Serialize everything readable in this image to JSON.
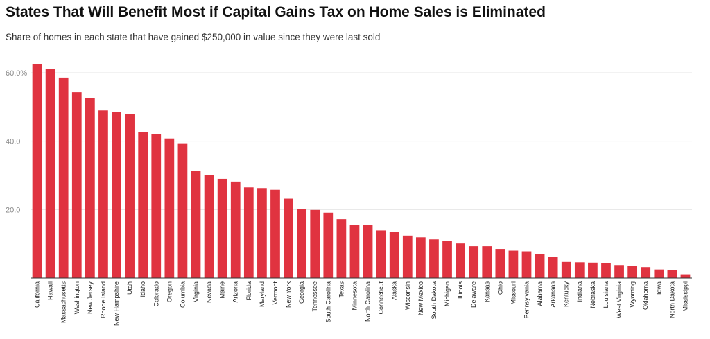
{
  "title": "States That Will Benefit Most if Capital Gains Tax on Home Sales is Eliminated",
  "subtitle": "Share of homes in each state that have gained $250,000 in value since they were last sold",
  "colors": {
    "bar": "#e03340",
    "grid": "#e6e6e6",
    "axis": "#333333"
  },
  "chart_data": {
    "type": "bar",
    "title": "States That Will Benefit Most if Capital Gains Tax on Home Sales is Eliminated",
    "subtitle": "Share of homes in each state that have gained $250,000 in value since they were last sold",
    "xlabel": "",
    "ylabel": "",
    "ylim": [
      0,
      60
    ],
    "yticks": [
      {
        "value": 20,
        "label": "20.0"
      },
      {
        "value": 40,
        "label": "40.0"
      },
      {
        "value": 60,
        "label": "60.0%"
      }
    ],
    "grid": true,
    "categories": [
      "California",
      "Hawaii",
      "Massachusetts",
      "Washington",
      "New Jersey",
      "Rhode Island",
      "New Hampshire",
      "Utah",
      "Idaho",
      "Colorado",
      "Oregon",
      "Columbia",
      "Virginia",
      "Nevada",
      "Maine",
      "Arizona",
      "Florida",
      "Maryland",
      "Vermont",
      "New York",
      "Georgia",
      "Tennessee",
      "South Carolina",
      "Texas",
      "Minnesota",
      "North Carolina",
      "Connecticut",
      "Alaska",
      "Wisconsin",
      "New Mexico",
      "South Dakota",
      "Michigan",
      "Illinois",
      "Delaware",
      "Kansas",
      "Ohio",
      "Missouri",
      "Pennsylvania",
      "Alabama",
      "Arkansas",
      "Kentucky",
      "Indiana",
      "Nebraska",
      "Louisiana",
      "West Virginia",
      "Wyoming",
      "Oklahoma",
      "Iowa",
      "North Dakota",
      "Mississippi"
    ],
    "values": [
      62.5,
      61.1,
      58.6,
      54.3,
      52.5,
      49.0,
      48.6,
      48.0,
      42.7,
      42.0,
      40.8,
      39.4,
      31.4,
      30.2,
      29.0,
      28.2,
      26.5,
      26.3,
      25.8,
      23.2,
      20.2,
      19.9,
      19.1,
      17.2,
      15.6,
      15.6,
      13.9,
      13.5,
      12.4,
      11.9,
      11.3,
      10.8,
      10.1,
      9.3,
      9.3,
      8.5,
      8.0,
      7.8,
      6.9,
      6.1,
      4.7,
      4.6,
      4.5,
      4.3,
      3.8,
      3.5,
      3.2,
      2.5,
      2.3,
      1.1
    ]
  }
}
